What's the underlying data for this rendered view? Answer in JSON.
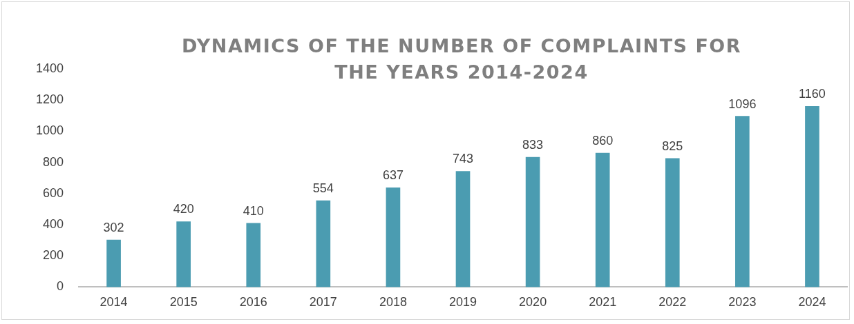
{
  "chart_data": {
    "type": "bar",
    "title": "DYNAMICS OF THE NUMBER OF COMPLAINTS FOR THE YEARS 2014-2024",
    "categories": [
      "2014",
      "2015",
      "2016",
      "2017",
      "2018",
      "2019",
      "2020",
      "2021",
      "2022",
      "2023",
      "2024"
    ],
    "values": [
      302,
      420,
      410,
      554,
      637,
      743,
      833,
      860,
      825,
      1096,
      1160
    ],
    "color": "#4b9cb1",
    "ylim": [
      0,
      1400
    ],
    "yticks": [
      0,
      200,
      400,
      600,
      800,
      1000,
      1200,
      1400
    ],
    "grid": false,
    "legend": false,
    "data_labels": true
  }
}
